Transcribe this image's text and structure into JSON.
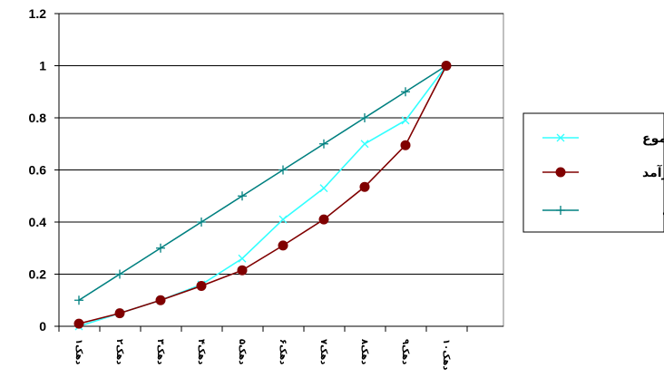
{
  "chart_data": {
    "type": "line",
    "title": "",
    "xlabel": "",
    "ylabel": "",
    "categories": [
      "دهک۱",
      "دهک۲",
      "دهک۳",
      "دهک۴",
      "دهک۵",
      "دهک۶",
      "دهک۷",
      "دهک۸",
      "دهک۹",
      "دهک۱۰"
    ],
    "ylim": [
      0,
      1.2
    ],
    "yticks": [
      "0",
      "0.2",
      "0.4",
      "0.6",
      "0.8",
      "1",
      "1.2"
    ],
    "grid": "horizontal",
    "legend_position": "right",
    "series": [
      {
        "name": "مجموع",
        "color": "#33ffff",
        "marker": "x",
        "values": [
          0.0,
          0.05,
          0.1,
          0.16,
          0.26,
          0.41,
          0.53,
          0.7,
          0.79,
          1.0
        ]
      },
      {
        "name": "درآمد",
        "color": "#800000",
        "marker": "circle",
        "values": [
          0.01,
          0.05,
          0.1,
          0.155,
          0.215,
          0.31,
          0.41,
          0.535,
          0.695,
          1.0
        ]
      },
      {
        "name": "خط قطری",
        "color": "#008080",
        "marker": "plus",
        "values": [
          0.1,
          0.2,
          0.3,
          0.4,
          0.5,
          0.6,
          0.7,
          0.8,
          0.9,
          1.0
        ]
      }
    ]
  }
}
